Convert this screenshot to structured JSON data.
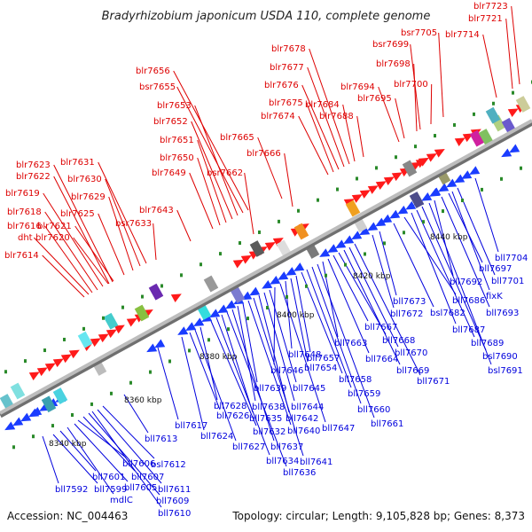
{
  "title": "Bradyrhizobium japonicum USDA 110, complete genome",
  "footer": {
    "accession": "Accession: NC_004463",
    "summary": "Topology: circular; Length: 9,105,828 bp; Genes: 8,373"
  },
  "colors": {
    "top_label": "#dd0000",
    "bottom_label": "#0000dd",
    "axis": "#9a9a9a",
    "forward_arrow": "#ff1a1a",
    "reverse_arrow": "#1a3cff",
    "tick": "#2a8a2a"
  },
  "kbp_ticks": [
    "8340 kbp",
    "8360 kbp",
    "8380 kbp",
    "8400 kbp",
    "8420 kbp",
    "8440 kbp"
  ],
  "top_labels": [
    "blr7614",
    "dht",
    "blr7616",
    "blr7618",
    "blr7619",
    "blr7622",
    "blr7623",
    "blr7620",
    "blr7621",
    "blr7625",
    "blr7629",
    "blr7630",
    "blr7631",
    "bsr7633",
    "blr7643",
    "blr7649",
    "blr7650",
    "blr7651",
    "blr7652",
    "blr7653",
    "bsr7655",
    "blr7656",
    "bsr7662",
    "blr7665",
    "blr7666",
    "blr7674",
    "blr7675",
    "blr7676",
    "blr7677",
    "blr7678",
    "blr7684",
    "blr7688",
    "blr7694",
    "blr7695",
    "blr7698",
    "bsr7699",
    "blr7700",
    "bsr7705",
    "blr7714",
    "blr7721",
    "blr7723"
  ],
  "bottom_labels": [
    "bll7592",
    "bll7599",
    "bll7601",
    "mdlC",
    "bll7605",
    "bll7606",
    "bll7607",
    "bll7609",
    "bll7610",
    "bll7611",
    "bsl7612",
    "bll7613",
    "bll7617",
    "bll7624",
    "bll7626",
    "bll7627",
    "bll7628",
    "bll7632",
    "bll7634",
    "bll7635",
    "bll7636",
    "bll7637",
    "bll7638",
    "bll7639",
    "bll7640",
    "bll7641",
    "bll7642",
    "bll7644",
    "bll7645",
    "bll7646",
    "bll7647",
    "bll7648",
    "bll7654",
    "bll7657",
    "bll7658",
    "bll7659",
    "bll7660",
    "bll7661",
    "bll7663",
    "bll7664",
    "bll7667",
    "bll7668",
    "bll7669",
    "bll7670",
    "bll7671",
    "bll7672",
    "bll7673",
    "bsl7682",
    "bll7686",
    "bll7687",
    "bll7689",
    "bsl7690",
    "bsl7691",
    "bll7692",
    "bll7693",
    "bll7697",
    "fixK",
    "bll7701",
    "bll7704"
  ]
}
